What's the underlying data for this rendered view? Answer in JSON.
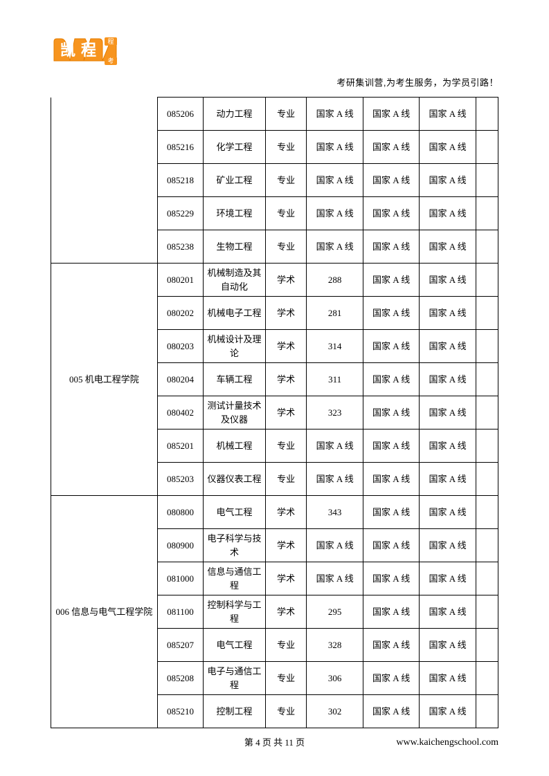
{
  "tagline": "考研集训营,为考生服务，为学员引路！",
  "logo": {
    "text_top": "凯",
    "text_bottom": "程"
  },
  "table": {
    "groups": [
      {
        "dept": "",
        "dept_rowspan": 5,
        "dept_hidden": true,
        "rows": [
          {
            "code": "085206",
            "major": "动力工程",
            "type": "专业",
            "score": "国家 A 线",
            "a1": "国家 A 线",
            "a2": "国家 A 线"
          },
          {
            "code": "085216",
            "major": "化学工程",
            "type": "专业",
            "score": "国家 A 线",
            "a1": "国家 A 线",
            "a2": "国家 A 线"
          },
          {
            "code": "085218",
            "major": "矿业工程",
            "type": "专业",
            "score": "国家 A 线",
            "a1": "国家 A 线",
            "a2": "国家 A 线"
          },
          {
            "code": "085229",
            "major": "环境工程",
            "type": "专业",
            "score": "国家 A 线",
            "a1": "国家 A 线",
            "a2": "国家 A 线"
          },
          {
            "code": "085238",
            "major": "生物工程",
            "type": "专业",
            "score": "国家 A 线",
            "a1": "国家 A 线",
            "a2": "国家 A 线"
          }
        ]
      },
      {
        "dept": "005 机电工程学院",
        "dept_rowspan": 7,
        "rows": [
          {
            "code": "080201",
            "major": "机械制造及其自动化",
            "type": "学术",
            "score": "288",
            "a1": "国家 A 线",
            "a2": "国家 A 线"
          },
          {
            "code": "080202",
            "major": "机械电子工程",
            "type": "学术",
            "score": "281",
            "a1": "国家 A 线",
            "a2": "国家 A 线"
          },
          {
            "code": "080203",
            "major": "机械设计及理论",
            "type": "学术",
            "score": "314",
            "a1": "国家 A 线",
            "a2": "国家 A 线"
          },
          {
            "code": "080204",
            "major": "车辆工程",
            "type": "学术",
            "score": "311",
            "a1": "国家 A 线",
            "a2": "国家 A 线"
          },
          {
            "code": "080402",
            "major": "测试计量技术及仪器",
            "type": "学术",
            "score": "323",
            "a1": "国家 A 线",
            "a2": "国家 A 线"
          },
          {
            "code": "085201",
            "major": "机械工程",
            "type": "专业",
            "score": "国家 A 线",
            "a1": "国家 A 线",
            "a2": "国家 A 线"
          },
          {
            "code": "085203",
            "major": "仪器仪表工程",
            "type": "专业",
            "score": "国家 A 线",
            "a1": "国家 A 线",
            "a2": "国家 A 线"
          }
        ]
      },
      {
        "dept": "006 信息与电气工程学院",
        "dept_rowspan": 7,
        "rows": [
          {
            "code": "080800",
            "major": "电气工程",
            "type": "学术",
            "score": "343",
            "a1": "国家 A 线",
            "a2": "国家 A 线"
          },
          {
            "code": "080900",
            "major": "电子科学与技术",
            "type": "学术",
            "score": "国家 A 线",
            "a1": "国家 A 线",
            "a2": "国家 A 线"
          },
          {
            "code": "081000",
            "major": "信息与通信工程",
            "type": "学术",
            "score": "国家 A 线",
            "a1": "国家 A 线",
            "a2": "国家 A 线"
          },
          {
            "code": "081100",
            "major": "控制科学与工程",
            "type": "学术",
            "score": "295",
            "a1": "国家 A 线",
            "a2": "国家 A 线"
          },
          {
            "code": "085207",
            "major": "电气工程",
            "type": "专业",
            "score": "328",
            "a1": "国家 A 线",
            "a2": "国家 A 线"
          },
          {
            "code": "085208",
            "major": "电子与通信工程",
            "type": "专业",
            "score": "306",
            "a1": "国家 A 线",
            "a2": "国家 A 线"
          },
          {
            "code": "085210",
            "major": "控制工程",
            "type": "专业",
            "score": "302",
            "a1": "国家 A 线",
            "a2": "国家 A 线"
          }
        ]
      }
    ]
  },
  "footer": {
    "page_text": "第 4 页 共 11 页",
    "website": "www.kaichengschool.com"
  },
  "colors": {
    "logo_orange": "#f7941e",
    "logo_white": "#ffffff",
    "border": "#000000",
    "text": "#000000",
    "background": "#ffffff"
  }
}
